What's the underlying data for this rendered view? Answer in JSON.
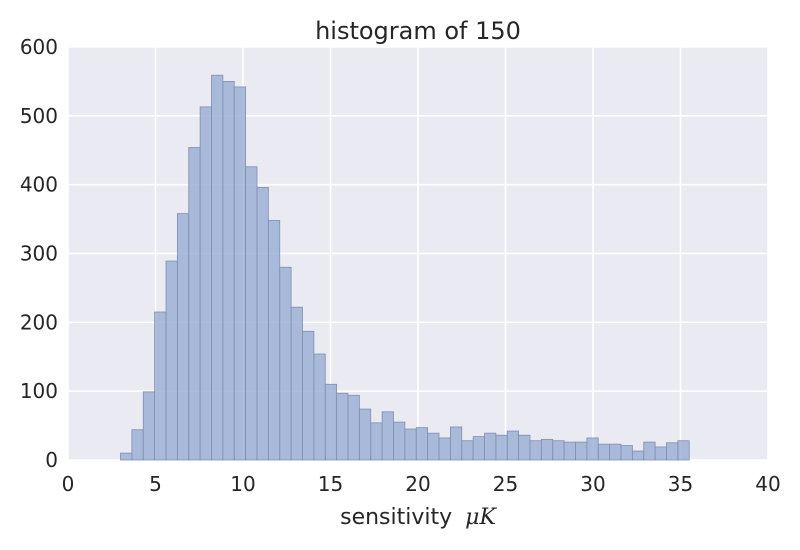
{
  "chart_data": {
    "type": "histogram",
    "title": "histogram of 150",
    "xlabel": "sensitivity",
    "xlabel_math": "μK",
    "ylabel": "",
    "xlim": [
      0,
      40
    ],
    "ylim": [
      0,
      600
    ],
    "xticks": [
      0,
      5,
      10,
      15,
      20,
      25,
      30,
      35,
      40
    ],
    "yticks": [
      0,
      100,
      200,
      300,
      400,
      500,
      600
    ],
    "grid": true,
    "bar_color": "#91a8d0",
    "bar_edge_color": "#7f8fb0",
    "background_color": "#eaeaf2",
    "grid_color": "#ffffff",
    "bin_edges": [
      3.0,
      3.65,
      4.3,
      4.95,
      5.6,
      6.25,
      6.9,
      7.55,
      8.2,
      8.85,
      9.5,
      10.15,
      10.8,
      11.45,
      12.1,
      12.75,
      13.4,
      14.05,
      14.7,
      15.35,
      16.0,
      16.65,
      17.3,
      17.95,
      18.6,
      19.25,
      19.9,
      20.55,
      21.2,
      21.85,
      22.5,
      23.15,
      23.8,
      24.45,
      25.1,
      25.75,
      26.4,
      27.05,
      27.7,
      28.35,
      29.0,
      29.65,
      30.3,
      30.95,
      31.6,
      32.25,
      32.9,
      33.55,
      34.2,
      34.85,
      35.5
    ],
    "counts": [
      10,
      44,
      99,
      215,
      289,
      358,
      454,
      513,
      559,
      550,
      542,
      426,
      396,
      348,
      280,
      222,
      187,
      154,
      110,
      97,
      94,
      74,
      54,
      70,
      55,
      45,
      47,
      39,
      32,
      48,
      28,
      34,
      39,
      36,
      42,
      36,
      28,
      30,
      28,
      26,
      26,
      32,
      23,
      23,
      21,
      13,
      26,
      19,
      25,
      28
    ]
  }
}
